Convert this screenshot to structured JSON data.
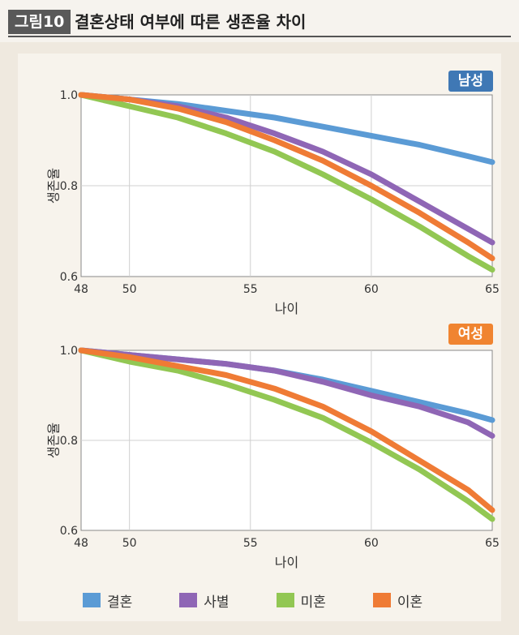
{
  "header": {
    "figure_no": "그림10",
    "title": "결혼상태 여부에 따른 생존율 차이"
  },
  "colors": {
    "결혼": "#5b9bd5",
    "사별": "#8f66b5",
    "미혼": "#92c753",
    "이혼": "#ef7b35"
  },
  "legend": [
    {
      "label": "결혼",
      "color_key": "결혼"
    },
    {
      "label": "사별",
      "color_key": "사별"
    },
    {
      "label": "미혼",
      "color_key": "미혼"
    },
    {
      "label": "이혼",
      "color_key": "이혼"
    }
  ],
  "chart_data": [
    {
      "type": "line",
      "badge": "남성",
      "badge_color": "#3f78b5",
      "xlabel": "나이",
      "ylabel": "생존율",
      "xlim": [
        48,
        65
      ],
      "ylim": [
        0.6,
        1.0
      ],
      "xticks": [
        "48",
        "50",
        "55",
        "60",
        "65"
      ],
      "yticks": [
        "1.0",
        "0.8",
        "0.6"
      ],
      "grid": true,
      "x": [
        48,
        50,
        52,
        54,
        56,
        58,
        60,
        62,
        64,
        65
      ],
      "series": [
        {
          "name": "결혼",
          "color": "#5b9bd5",
          "values": [
            1.0,
            0.99,
            0.98,
            0.965,
            0.95,
            0.93,
            0.91,
            0.89,
            0.865,
            0.852
          ]
        },
        {
          "name": "사별",
          "color": "#8f66b5",
          "values": [
            1.0,
            0.99,
            0.975,
            0.95,
            0.915,
            0.875,
            0.825,
            0.765,
            0.705,
            0.675
          ]
        },
        {
          "name": "미혼",
          "color": "#92c753",
          "values": [
            1.0,
            0.975,
            0.95,
            0.915,
            0.875,
            0.825,
            0.77,
            0.71,
            0.645,
            0.615
          ]
        },
        {
          "name": "이혼",
          "color": "#ef7b35",
          "values": [
            1.0,
            0.99,
            0.97,
            0.94,
            0.9,
            0.855,
            0.8,
            0.74,
            0.675,
            0.64
          ]
        }
      ]
    },
    {
      "type": "line",
      "badge": "여성",
      "badge_color": "#f08430",
      "xlabel": "나이",
      "ylabel": "생존율",
      "xlim": [
        48,
        65
      ],
      "ylim": [
        0.6,
        1.0
      ],
      "xticks": [
        "48",
        "50",
        "55",
        "60",
        "65"
      ],
      "yticks": [
        "1.0",
        "0.8",
        "0.6"
      ],
      "grid": true,
      "x": [
        48,
        50,
        52,
        54,
        56,
        58,
        60,
        62,
        64,
        65
      ],
      "series": [
        {
          "name": "결혼",
          "color": "#5b9bd5",
          "values": [
            1.0,
            0.99,
            0.98,
            0.97,
            0.955,
            0.935,
            0.91,
            0.885,
            0.86,
            0.845
          ]
        },
        {
          "name": "사별",
          "color": "#8f66b5",
          "values": [
            1.0,
            0.99,
            0.98,
            0.97,
            0.955,
            0.93,
            0.9,
            0.875,
            0.84,
            0.81
          ]
        },
        {
          "name": "미혼",
          "color": "#92c753",
          "values": [
            1.0,
            0.975,
            0.955,
            0.925,
            0.89,
            0.85,
            0.795,
            0.735,
            0.665,
            0.625
          ]
        },
        {
          "name": "이혼",
          "color": "#ef7b35",
          "values": [
            1.0,
            0.985,
            0.965,
            0.945,
            0.915,
            0.875,
            0.82,
            0.755,
            0.69,
            0.645
          ]
        }
      ]
    }
  ]
}
